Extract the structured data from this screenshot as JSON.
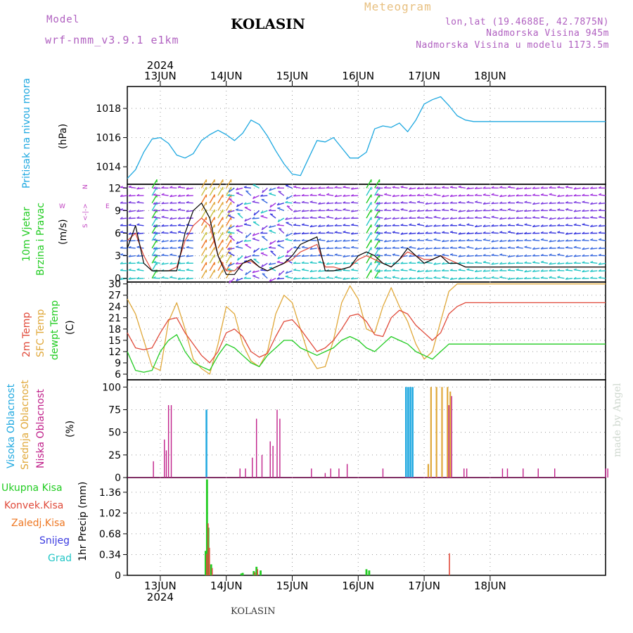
{
  "header": {
    "model_label": "Model",
    "model_name": "wrf-nmm_v3.9.1 e1km",
    "title": "KOLASIN",
    "meteogram_label": "Meteogram",
    "lonlat": "lon,lat (19.4688E, 42.7875N)",
    "elevation": "Nadmorska Visina 945m",
    "model_elevation": "Nadmorska Visina u modelu 1173.5m",
    "credit": "made by Angel",
    "footer_location": "KOLASIN"
  },
  "colors": {
    "pressure": "#1ea8e0",
    "temp2m": "#e04a3a",
    "sfc": "#e0a83a",
    "dewpt": "#22cc22",
    "high_cloud": "#1ea8e0",
    "mid_cloud": "#e0a83a",
    "low_cloud": "#c0208a",
    "total_precip": "#22cc22",
    "convective": "#e04a3a",
    "freezing": "#ee7722",
    "snow": "#3a3ae0",
    "hail": "#22c6c6",
    "wind_label": "#22cc22",
    "compass": "#c040c0"
  },
  "axes": {
    "year": "2024",
    "days": [
      "13JUN",
      "14JUN",
      "15JUN",
      "16JUN",
      "17JUN",
      "18JUN"
    ]
  },
  "panels": {
    "pressure": {
      "title": "Pritisak na nivou mora",
      "unit": "(hPa)",
      "ticks": [
        "1018",
        "1016",
        "1014"
      ]
    },
    "wind": {
      "title1": "10m Vjetar",
      "title2": "Brzina i Pravac",
      "unit": "(m/s)",
      "ticks": [
        "12",
        "9",
        "6",
        "3",
        "0"
      ],
      "compass": {
        "n": "N",
        "w": "W",
        "e": "E",
        "s": "S",
        "arrows": "<-|->"
      }
    },
    "temp": {
      "legend": [
        "2m Temp",
        "SFC Temp",
        "dewpt Temp"
      ],
      "unit": "(C)",
      "ticks": [
        "30",
        "27",
        "24",
        "21",
        "18",
        "15",
        "12",
        "9",
        "6"
      ]
    },
    "cloud": {
      "legend": [
        "Visoka Oblacnost",
        "Srednja Oblacnost",
        "Niska Oblacnost"
      ],
      "unit": "(%)",
      "ticks": [
        "100",
        "75",
        "50",
        "25",
        "0"
      ]
    },
    "precip": {
      "legend": [
        "Ukupna Kisa",
        "Konvek.Kisa",
        "Zaledj.Kisa",
        "Snijeg",
        "Grad"
      ],
      "unit": "1hr Precip (mm)",
      "ticks": [
        "1.36",
        "1.02",
        "0.68",
        "0.34",
        "0"
      ]
    }
  },
  "chart_data": [
    {
      "type": "line",
      "ylabel": "(hPa)",
      "ylim": [
        1012.8,
        1019.5
      ],
      "x_hours": [
        0,
        3,
        6,
        9,
        12,
        15,
        18,
        21,
        24,
        27,
        30,
        33,
        36,
        39,
        42,
        45,
        48,
        51,
        54,
        57,
        60,
        63,
        66,
        69,
        72,
        75,
        78,
        81,
        84,
        87,
        90,
        93,
        96,
        99,
        102,
        105,
        108,
        111,
        114,
        117,
        120,
        123,
        126,
        129,
        132,
        135,
        138,
        141,
        144,
        147,
        150,
        153,
        156,
        159,
        162,
        165,
        168,
        171,
        174
      ],
      "series": [
        {
          "name": "pressure",
          "values": [
            1013.2,
            1013.8,
            1015.0,
            1015.9,
            1016.0,
            1015.6,
            1014.8,
            1014.6,
            1014.9,
            1015.8,
            1016.2,
            1016.5,
            1016.2,
            1015.8,
            1016.3,
            1017.2,
            1016.9,
            1016.1,
            1015.1,
            1014.2,
            1013.5,
            1013.4,
            1014.6,
            1015.8,
            1015.7,
            1016.0,
            1015.3,
            1014.6,
            1014.6,
            1015.0,
            1016.6,
            1016.8,
            1016.7,
            1017.0,
            1016.4,
            1017.2,
            1018.3,
            1018.6,
            1018.8,
            1018.2,
            1017.5,
            1017.2,
            1017.1,
            1017.1,
            1017.1,
            1017.1,
            1017.1,
            1017.1,
            1017.1,
            1017.1,
            1017.1,
            1017.1,
            1017.1,
            1017.1,
            1017.1,
            1017.1,
            1017.1,
            1017.1,
            1017.1
          ]
        }
      ]
    },
    {
      "type": "line",
      "ylabel": "(m/s)",
      "ylim": [
        -0.5,
        12.5
      ],
      "x_hours": [
        0,
        3,
        6,
        9,
        12,
        15,
        18,
        21,
        24,
        27,
        30,
        33,
        36,
        39,
        42,
        45,
        48,
        51,
        54,
        57,
        60,
        63,
        66,
        69,
        72,
        75,
        78,
        81,
        84,
        87,
        90,
        93,
        96,
        99,
        102,
        105,
        108,
        111,
        114,
        117,
        120,
        123,
        126,
        129,
        132,
        135,
        138,
        141,
        144,
        147,
        150,
        153,
        156,
        159,
        162,
        165,
        168,
        171,
        174
      ],
      "series": [
        {
          "name": "speed",
          "values": [
            4,
            7,
            2,
            1,
            1,
            1,
            1,
            6,
            9,
            10,
            8,
            3,
            0.5,
            0.5,
            2,
            2.5,
            1.5,
            1,
            1.5,
            2,
            3,
            4.5,
            5,
            5.5,
            1,
            1,
            1.2,
            1.5,
            3,
            3.5,
            3,
            2,
            1.5,
            2.5,
            4,
            3,
            2,
            2.5,
            3,
            2,
            2,
            1.5,
            1.5,
            1.5,
            1.5,
            1.5,
            1.5,
            1.5,
            1.5,
            1.5,
            1.5,
            1.5,
            1.5,
            1.5,
            1.5,
            1.5,
            1.5,
            1.5,
            1.5
          ]
        },
        {
          "name": "gust",
          "values": [
            5,
            6,
            3,
            1,
            1,
            1,
            1.5,
            5,
            7,
            8,
            7,
            3,
            1,
            1,
            2,
            2.3,
            1.5,
            1,
            1.5,
            2,
            2.5,
            3.5,
            4,
            4.5,
            1.5,
            1.5,
            1.2,
            1.5,
            2.5,
            3,
            2.5,
            2,
            1.5,
            2.5,
            3.5,
            3,
            2.5,
            2.5,
            3,
            2.5,
            2,
            1.5,
            1.5,
            1.5,
            1.5,
            1.5,
            1.5,
            1.5,
            1.5,
            1.5,
            1.5,
            1.5,
            1.5,
            1.5,
            1.5,
            1.5,
            1.5,
            1.5,
            1.5
          ]
        }
      ]
    },
    {
      "type": "line",
      "ylabel": "(C)",
      "ylim": [
        4.5,
        30.5
      ],
      "x_hours": [
        0,
        3,
        6,
        9,
        12,
        15,
        18,
        21,
        24,
        27,
        30,
        33,
        36,
        39,
        42,
        45,
        48,
        51,
        54,
        57,
        60,
        63,
        66,
        69,
        72,
        75,
        78,
        81,
        84,
        87,
        90,
        93,
        96,
        99,
        102,
        105,
        108,
        111,
        114,
        117,
        120,
        123,
        126,
        129,
        132,
        135,
        138,
        141,
        144,
        147,
        150,
        153,
        156,
        159,
        162,
        165,
        168,
        171,
        174
      ],
      "series": [
        {
          "name": "2m Temp",
          "values": [
            17,
            13,
            12.5,
            13,
            17,
            20.5,
            21,
            17,
            14,
            11,
            9,
            12,
            17,
            18,
            16,
            12,
            10.5,
            11.5,
            16,
            20,
            20.5,
            18,
            15,
            12,
            13,
            15,
            18,
            21.5,
            22,
            20,
            16.5,
            16,
            21,
            23,
            22,
            19,
            17,
            15,
            17,
            22,
            24,
            25,
            25,
            25,
            25,
            25,
            25,
            25,
            25,
            25,
            25,
            25,
            25,
            25,
            25,
            25,
            25,
            25,
            25
          ]
        },
        {
          "name": "SFC Temp",
          "values": [
            26,
            22,
            15,
            8,
            7,
            20,
            25,
            18,
            10,
            7.5,
            6,
            14,
            24,
            22,
            14,
            9.5,
            8,
            12,
            22,
            27,
            25,
            18,
            11,
            7.5,
            8,
            15,
            25,
            29.5,
            26,
            18,
            17,
            24,
            29,
            24,
            20,
            14,
            10,
            12,
            20,
            28,
            30,
            30,
            30,
            30,
            30,
            30,
            30,
            30,
            30,
            30,
            30,
            30,
            30,
            30,
            30,
            30,
            30,
            30,
            30
          ]
        },
        {
          "name": "dewpt Temp",
          "values": [
            12,
            7,
            6.5,
            7,
            12,
            15,
            16.5,
            12,
            9,
            8,
            7,
            11,
            14,
            13,
            11,
            9,
            8,
            11,
            13,
            15,
            15,
            13,
            12,
            11,
            12,
            13,
            15,
            16,
            15,
            13,
            12,
            14,
            16,
            15,
            14,
            12,
            11,
            10,
            12,
            14,
            14,
            14,
            14,
            14,
            14,
            14,
            14,
            14,
            14,
            14,
            14,
            14,
            14,
            14,
            14,
            14,
            14,
            14,
            14
          ]
        }
      ]
    },
    {
      "type": "bar",
      "ylabel": "(%)",
      "ylim": [
        0,
        108
      ],
      "series": [
        {
          "name": "Visoka Oblacnost",
          "x_hours": [
            28.8,
            101.4,
            102.2,
            103.0,
            103.8
          ],
          "values": [
            75,
            100,
            100,
            100,
            100
          ]
        },
        {
          "name": "Srednja Oblacnost",
          "x_hours": [
            109.5,
            110.5,
            112.5,
            114.5,
            116.5,
            117.5
          ],
          "values": [
            15,
            100,
            100,
            100,
            100,
            95
          ]
        },
        {
          "name": "Niska Oblacnost",
          "x_hours": [
            9.5,
            13.5,
            14.2,
            15,
            16,
            41,
            43,
            45.5,
            47,
            49,
            52,
            53,
            54.5,
            55.5,
            67,
            72,
            74,
            77,
            80,
            93,
            117,
            118,
            122.5,
            123.5,
            136.5,
            138.3,
            144,
            149.5,
            155.5,
            174,
            174.8
          ],
          "values": [
            18,
            42,
            30,
            80,
            80,
            10,
            10,
            22,
            65,
            25,
            40,
            35,
            75,
            65,
            10,
            5,
            10,
            10,
            15,
            10,
            80,
            90,
            10,
            10,
            10,
            10,
            10,
            10,
            10,
            10,
            10
          ]
        }
      ]
    },
    {
      "type": "bar",
      "ylabel": "1hr Precip (mm)",
      "ylim": [
        0,
        1.6
      ],
      "series": [
        {
          "name": "Ukupna Kisa",
          "x_hours": [
            28.5,
            29,
            29.5,
            30.5,
            41.5,
            42,
            46,
            47,
            48.5,
            87,
            88
          ],
          "values": [
            0.4,
            1.57,
            0.78,
            0.18,
            0.03,
            0.04,
            0.07,
            0.14,
            0.08,
            0.1,
            0.08
          ]
        },
        {
          "name": "Konvek.Kisa",
          "x_hours": [
            28.5,
            29,
            29.5,
            30.5,
            46,
            47,
            116.8
          ],
          "values": [
            0.35,
            0.85,
            0.45,
            0.12,
            0.05,
            0.1,
            0.36
          ]
        },
        {
          "name": "Zaledj.Kisa",
          "x_hours": [],
          "values": []
        },
        {
          "name": "Snijeg",
          "x_hours": [],
          "values": []
        },
        {
          "name": "Grad",
          "x_hours": [],
          "values": []
        }
      ]
    }
  ]
}
